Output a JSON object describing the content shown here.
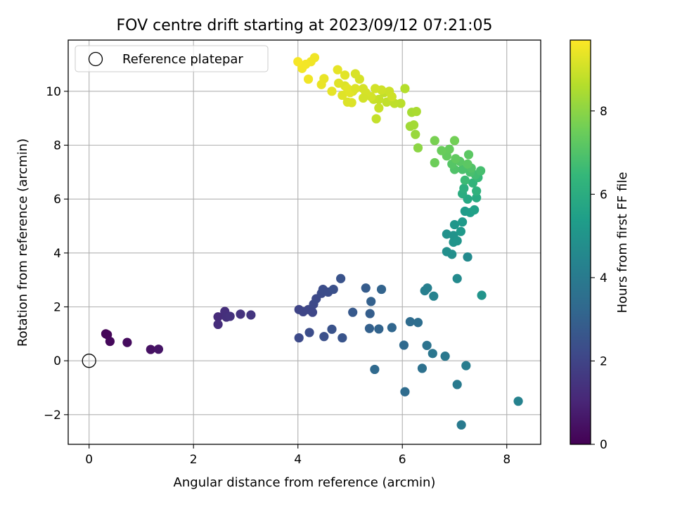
{
  "chart_data": {
    "type": "scatter",
    "title": "FOV centre drift starting at 2023/09/12 07:21:05",
    "xlabel": "Angular distance from reference (arcmin)",
    "ylabel": "Rotation from reference (arcmin)",
    "xlim": [
      -0.4,
      8.65
    ],
    "ylim": [
      -3.1,
      11.9
    ],
    "xticks": [
      0,
      2,
      4,
      6,
      8
    ],
    "yticks": [
      -2,
      0,
      2,
      4,
      6,
      8,
      10
    ],
    "grid": true,
    "legend": {
      "placement": "upper-left",
      "entries": [
        "Reference platepar"
      ]
    },
    "reference_point": {
      "label": "Reference platepar",
      "x": 0,
      "y": 0
    },
    "colorbar": {
      "label": "Hours from first FF file",
      "colormap": "viridis",
      "range": [
        0,
        9.7
      ],
      "ticks": [
        0,
        2,
        4,
        6,
        8
      ]
    },
    "colormap_stops": [
      "#440154",
      "#482878",
      "#3e4989",
      "#31688e",
      "#26828e",
      "#1f9e89",
      "#35b779",
      "#6ece58",
      "#b5de2b",
      "#fde725"
    ],
    "points": [
      {
        "x": 0.32,
        "y": 1.0,
        "h": 0.1
      },
      {
        "x": 0.35,
        "y": 0.97,
        "h": 0.15
      },
      {
        "x": 0.4,
        "y": 0.72,
        "h": 0.2
      },
      {
        "x": 0.73,
        "y": 0.68,
        "h": 0.3
      },
      {
        "x": 1.18,
        "y": 0.42,
        "h": 0.45
      },
      {
        "x": 1.33,
        "y": 0.43,
        "h": 0.55
      },
      {
        "x": 2.47,
        "y": 1.63,
        "h": 1.2
      },
      {
        "x": 2.47,
        "y": 1.35,
        "h": 1.25
      },
      {
        "x": 2.6,
        "y": 1.83,
        "h": 1.3
      },
      {
        "x": 2.63,
        "y": 1.62,
        "h": 1.35
      },
      {
        "x": 2.7,
        "y": 1.65,
        "h": 1.4
      },
      {
        "x": 2.9,
        "y": 1.73,
        "h": 1.45
      },
      {
        "x": 3.1,
        "y": 1.7,
        "h": 1.5
      },
      {
        "x": 4.02,
        "y": 1.9,
        "h": 2.0
      },
      {
        "x": 4.1,
        "y": 1.82,
        "h": 2.05
      },
      {
        "x": 4.2,
        "y": 1.9,
        "h": 2.1
      },
      {
        "x": 4.3,
        "y": 2.1,
        "h": 2.15
      },
      {
        "x": 4.28,
        "y": 1.8,
        "h": 2.1
      },
      {
        "x": 4.35,
        "y": 2.3,
        "h": 2.2
      },
      {
        "x": 4.45,
        "y": 2.5,
        "h": 2.25
      },
      {
        "x": 4.48,
        "y": 2.65,
        "h": 2.3
      },
      {
        "x": 4.58,
        "y": 2.55,
        "h": 2.3
      },
      {
        "x": 4.68,
        "y": 2.65,
        "h": 2.4
      },
      {
        "x": 4.82,
        "y": 3.05,
        "h": 2.5
      },
      {
        "x": 4.02,
        "y": 0.85,
        "h": 2.2
      },
      {
        "x": 4.22,
        "y": 1.05,
        "h": 2.3
      },
      {
        "x": 4.5,
        "y": 0.9,
        "h": 2.4
      },
      {
        "x": 4.65,
        "y": 1.17,
        "h": 2.5
      },
      {
        "x": 4.85,
        "y": 0.85,
        "h": 2.55
      },
      {
        "x": 5.05,
        "y": 1.8,
        "h": 2.7
      },
      {
        "x": 5.3,
        "y": 2.7,
        "h": 2.8
      },
      {
        "x": 5.38,
        "y": 1.75,
        "h": 2.9
      },
      {
        "x": 5.4,
        "y": 2.2,
        "h": 3.0
      },
      {
        "x": 5.37,
        "y": 1.2,
        "h": 3.0
      },
      {
        "x": 5.55,
        "y": 1.18,
        "h": 3.1
      },
      {
        "x": 5.6,
        "y": 2.65,
        "h": 3.1
      },
      {
        "x": 5.8,
        "y": 1.23,
        "h": 3.2
      },
      {
        "x": 5.47,
        "y": -0.32,
        "h": 3.3
      },
      {
        "x": 6.03,
        "y": 0.58,
        "h": 3.3
      },
      {
        "x": 6.05,
        "y": -1.15,
        "h": 3.4
      },
      {
        "x": 6.15,
        "y": 1.45,
        "h": 3.4
      },
      {
        "x": 6.3,
        "y": 1.42,
        "h": 3.5
      },
      {
        "x": 6.38,
        "y": -0.28,
        "h": 3.6
      },
      {
        "x": 6.47,
        "y": 0.57,
        "h": 3.7
      },
      {
        "x": 6.58,
        "y": 0.27,
        "h": 3.8
      },
      {
        "x": 6.82,
        "y": 0.17,
        "h": 3.9
      },
      {
        "x": 7.05,
        "y": -0.88,
        "h": 4.0
      },
      {
        "x": 7.13,
        "y": -2.38,
        "h": 4.0
      },
      {
        "x": 7.22,
        "y": -0.18,
        "h": 4.1
      },
      {
        "x": 6.43,
        "y": 2.6,
        "h": 4.2
      },
      {
        "x": 6.48,
        "y": 2.7,
        "h": 4.2
      },
      {
        "x": 6.6,
        "y": 2.4,
        "h": 4.3
      },
      {
        "x": 8.22,
        "y": -1.5,
        "h": 4.3
      },
      {
        "x": 7.05,
        "y": 3.05,
        "h": 4.6
      },
      {
        "x": 7.25,
        "y": 3.85,
        "h": 4.6
      },
      {
        "x": 7.52,
        "y": 2.43,
        "h": 5.0
      },
      {
        "x": 6.85,
        "y": 4.05,
        "h": 4.8
      },
      {
        "x": 6.95,
        "y": 3.95,
        "h": 4.8
      },
      {
        "x": 6.85,
        "y": 4.7,
        "h": 4.9
      },
      {
        "x": 6.98,
        "y": 4.65,
        "h": 4.95
      },
      {
        "x": 6.98,
        "y": 4.4,
        "h": 5.0
      },
      {
        "x": 7.05,
        "y": 4.45,
        "h": 5.05
      },
      {
        "x": 7.0,
        "y": 5.05,
        "h": 5.1
      },
      {
        "x": 7.12,
        "y": 4.8,
        "h": 5.2
      },
      {
        "x": 7.15,
        "y": 5.15,
        "h": 5.25
      },
      {
        "x": 7.2,
        "y": 5.55,
        "h": 5.3
      },
      {
        "x": 7.3,
        "y": 5.5,
        "h": 5.4
      },
      {
        "x": 7.38,
        "y": 5.6,
        "h": 5.5
      },
      {
        "x": 7.25,
        "y": 6.0,
        "h": 5.8
      },
      {
        "x": 7.42,
        "y": 6.05,
        "h": 5.9
      },
      {
        "x": 7.15,
        "y": 6.2,
        "h": 6.0
      },
      {
        "x": 7.18,
        "y": 6.4,
        "h": 6.1
      },
      {
        "x": 7.42,
        "y": 6.3,
        "h": 6.2
      },
      {
        "x": 7.35,
        "y": 6.6,
        "h": 6.3
      },
      {
        "x": 7.45,
        "y": 6.8,
        "h": 6.5
      },
      {
        "x": 7.2,
        "y": 6.7,
        "h": 6.6
      },
      {
        "x": 7.4,
        "y": 6.9,
        "h": 6.7
      },
      {
        "x": 7.5,
        "y": 7.05,
        "h": 6.8
      },
      {
        "x": 7.3,
        "y": 7.0,
        "h": 6.85
      },
      {
        "x": 7.15,
        "y": 7.1,
        "h": 6.9
      },
      {
        "x": 7.32,
        "y": 7.15,
        "h": 7.0
      },
      {
        "x": 7.0,
        "y": 7.1,
        "h": 7.0
      },
      {
        "x": 6.95,
        "y": 7.3,
        "h": 7.1
      },
      {
        "x": 7.1,
        "y": 7.4,
        "h": 7.15
      },
      {
        "x": 7.25,
        "y": 7.3,
        "h": 7.2
      },
      {
        "x": 7.27,
        "y": 7.65,
        "h": 7.2
      },
      {
        "x": 7.02,
        "y": 7.5,
        "h": 7.3
      },
      {
        "x": 6.85,
        "y": 7.6,
        "h": 7.35
      },
      {
        "x": 6.9,
        "y": 7.85,
        "h": 7.4
      },
      {
        "x": 6.75,
        "y": 7.8,
        "h": 7.45
      },
      {
        "x": 6.62,
        "y": 7.35,
        "h": 7.5
      },
      {
        "x": 7.0,
        "y": 8.17,
        "h": 7.6
      },
      {
        "x": 6.62,
        "y": 8.17,
        "h": 7.7
      },
      {
        "x": 6.3,
        "y": 7.9,
        "h": 8.0
      },
      {
        "x": 6.25,
        "y": 8.4,
        "h": 8.2
      },
      {
        "x": 6.15,
        "y": 8.7,
        "h": 8.3
      },
      {
        "x": 6.22,
        "y": 8.75,
        "h": 8.35
      },
      {
        "x": 6.18,
        "y": 9.22,
        "h": 8.4
      },
      {
        "x": 6.27,
        "y": 9.25,
        "h": 8.45
      },
      {
        "x": 6.05,
        "y": 10.1,
        "h": 8.6
      },
      {
        "x": 5.97,
        "y": 9.55,
        "h": 8.7
      },
      {
        "x": 5.85,
        "y": 9.55,
        "h": 8.75
      },
      {
        "x": 5.7,
        "y": 9.6,
        "h": 8.8
      },
      {
        "x": 5.65,
        "y": 9.95,
        "h": 8.8
      },
      {
        "x": 5.55,
        "y": 9.7,
        "h": 8.85
      },
      {
        "x": 5.45,
        "y": 9.7,
        "h": 8.9
      },
      {
        "x": 5.55,
        "y": 9.38,
        "h": 8.9
      },
      {
        "x": 5.5,
        "y": 8.98,
        "h": 8.85
      },
      {
        "x": 5.75,
        "y": 10.0,
        "h": 8.95
      },
      {
        "x": 5.8,
        "y": 9.8,
        "h": 9.0
      },
      {
        "x": 5.6,
        "y": 10.05,
        "h": 9.0
      },
      {
        "x": 5.48,
        "y": 10.1,
        "h": 9.05
      },
      {
        "x": 5.4,
        "y": 9.8,
        "h": 9.05
      },
      {
        "x": 5.25,
        "y": 10.1,
        "h": 9.1
      },
      {
        "x": 5.18,
        "y": 10.45,
        "h": 9.1
      },
      {
        "x": 5.1,
        "y": 10.65,
        "h": 9.15
      },
      {
        "x": 5.05,
        "y": 10.0,
        "h": 9.15
      },
      {
        "x": 5.03,
        "y": 9.58,
        "h": 9.2
      },
      {
        "x": 4.95,
        "y": 9.6,
        "h": 9.2
      },
      {
        "x": 4.9,
        "y": 10.2,
        "h": 9.2
      },
      {
        "x": 4.85,
        "y": 9.85,
        "h": 9.25
      },
      {
        "x": 4.78,
        "y": 10.3,
        "h": 9.25
      },
      {
        "x": 4.95,
        "y": 10.1,
        "h": 9.3
      },
      {
        "x": 5.0,
        "y": 9.95,
        "h": 9.3
      },
      {
        "x": 4.9,
        "y": 10.6,
        "h": 9.3
      },
      {
        "x": 4.76,
        "y": 10.8,
        "h": 9.35
      },
      {
        "x": 4.65,
        "y": 10.0,
        "h": 9.35
      },
      {
        "x": 4.5,
        "y": 10.47,
        "h": 9.4
      },
      {
        "x": 4.45,
        "y": 10.25,
        "h": 9.4
      },
      {
        "x": 4.32,
        "y": 11.25,
        "h": 9.5
      },
      {
        "x": 4.25,
        "y": 11.1,
        "h": 9.5
      },
      {
        "x": 4.15,
        "y": 11.0,
        "h": 9.55
      },
      {
        "x": 4.08,
        "y": 10.85,
        "h": 9.55
      },
      {
        "x": 4.0,
        "y": 11.1,
        "h": 9.6
      },
      {
        "x": 4.2,
        "y": 10.45,
        "h": 9.5
      },
      {
        "x": 5.1,
        "y": 10.1,
        "h": 9.2
      },
      {
        "x": 5.3,
        "y": 9.95,
        "h": 9.1
      },
      {
        "x": 5.25,
        "y": 9.75,
        "h": 9.05
      }
    ]
  }
}
